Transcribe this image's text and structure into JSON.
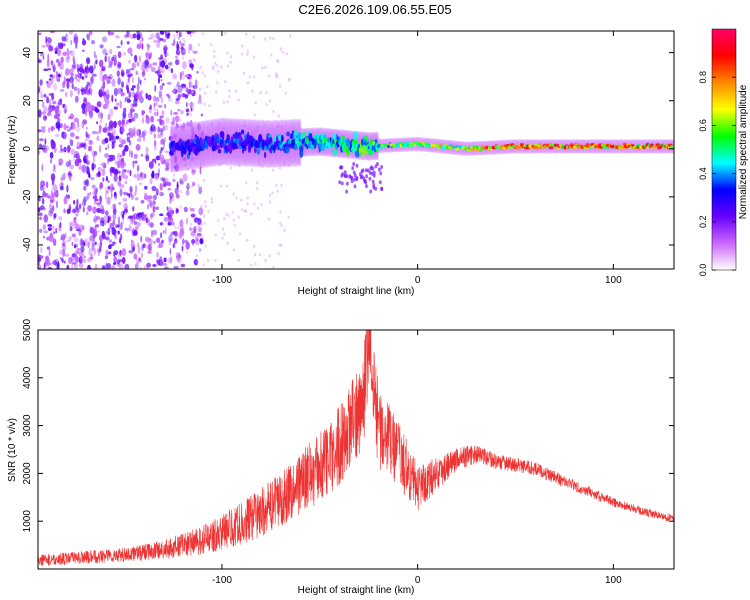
{
  "page": {
    "title": "C2E6.2026.109.06.55.E05"
  },
  "chart_data": [
    {
      "type": "heatmap",
      "title": "C2E6.2026.109.06.55.E05",
      "xlabel": "Height of straight line (km)",
      "ylabel": "Frequency (Hz)",
      "xlim": [
        -194,
        131
      ],
      "ylim": [
        -50,
        49
      ],
      "xticks": [
        -100,
        0,
        100
      ],
      "xtick_labels": [
        "-100",
        "0",
        "100"
      ],
      "yticks": [
        -40,
        -20,
        0,
        20,
        40
      ],
      "ytick_labels": [
        "-40",
        "-20",
        "0",
        "20",
        "40"
      ],
      "colorbar": {
        "label": "Normalized spectral amplitude",
        "range": [
          0,
          1
        ],
        "ticks": [
          0.0,
          0.2,
          0.4,
          0.6,
          0.8
        ],
        "tick_labels": [
          "0.0",
          "0.2",
          "0.4",
          "0.6",
          "0.8"
        ],
        "colors": [
          "#ffffff",
          "#cc66ff",
          "#6600ff",
          "#0000ff",
          "#00ffff",
          "#00ff00",
          "#ffff00",
          "#ff8800",
          "#ff0000",
          "#ff0066"
        ]
      },
      "ridge": {
        "description_x": [
          -125,
          -100,
          -75,
          -50,
          -25,
          0,
          25,
          50,
          75,
          100,
          131
        ],
        "center_hz": [
          0,
          3,
          2,
          3,
          1,
          2,
          0,
          1,
          1,
          1,
          1
        ],
        "peak_amplitude": [
          0.35,
          0.35,
          0.4,
          0.5,
          0.6,
          0.7,
          0.75,
          0.9,
          0.95,
          0.9,
          0.9
        ]
      }
    },
    {
      "type": "line",
      "xlabel": "Height of straight line (km)",
      "ylabel": "SNR (10 * v/v)",
      "xlim": [
        -194,
        131
      ],
      "ylim": [
        0,
        5000
      ],
      "xticks": [
        -100,
        0,
        100
      ],
      "xtick_labels": [
        "-100",
        "0",
        "100"
      ],
      "yticks": [
        1000,
        2000,
        3000,
        4000,
        5000
      ],
      "ytick_labels": [
        "1000",
        "2000",
        "3000",
        "4000",
        "5000"
      ],
      "series": [
        {
          "name": "SNR",
          "color": "#ee3333",
          "envelope_x": [
            -194,
            -150,
            -130,
            -110,
            -90,
            -75,
            -60,
            -45,
            -35,
            -28,
            -25,
            -20,
            -10,
            0,
            10,
            20,
            30,
            40,
            60,
            80,
            100,
            115,
            131
          ],
          "envelope_y": [
            180,
            300,
            400,
            600,
            950,
            1300,
            1800,
            2300,
            2900,
            3500,
            4700,
            3000,
            2400,
            1700,
            2000,
            2300,
            2400,
            2250,
            2100,
            1750,
            1400,
            1200,
            1050
          ],
          "noise_amplitude": [
            120,
            150,
            200,
            300,
            450,
            550,
            650,
            800,
            900,
            1000,
            1100,
            900,
            700,
            500,
            350,
            250,
            200,
            160,
            140,
            120,
            100,
            90,
            80
          ]
        }
      ]
    }
  ]
}
